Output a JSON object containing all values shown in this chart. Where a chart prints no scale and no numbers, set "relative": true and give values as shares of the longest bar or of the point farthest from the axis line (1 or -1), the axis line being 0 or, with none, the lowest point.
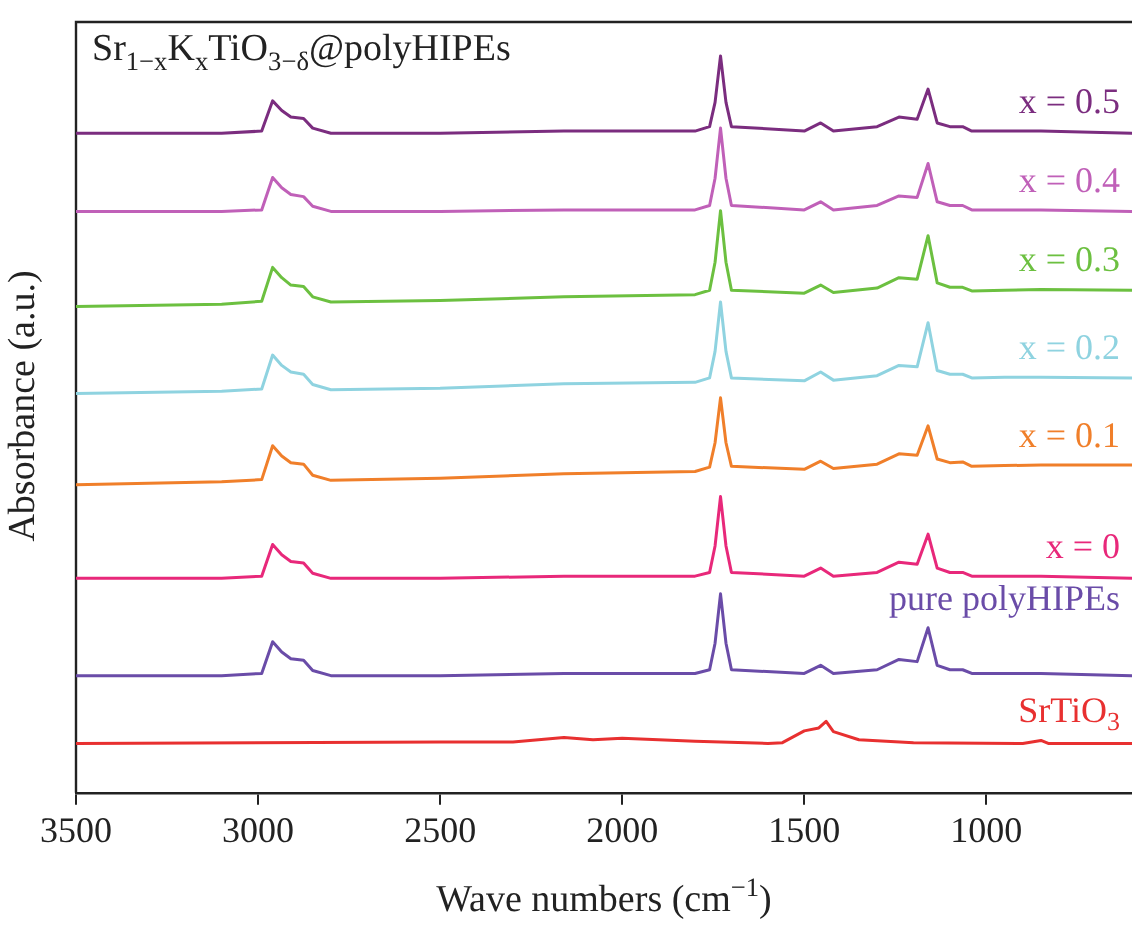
{
  "chart_data": {
    "type": "line",
    "relative": true,
    "title": "Sr$_{1−x}$K$_{x}$TiO$_{3−δ}$@polyHIPEs",
    "xlabel": "Wave numbers (cm$^{−1}$)",
    "ylabel": "Absorbance (a.u.)",
    "xlim": [
      3500,
      600
    ],
    "xticks": [
      3500,
      3000,
      2500,
      2000,
      1500,
      1000
    ],
    "legend": false,
    "grid": false,
    "marker": "none",
    "x": [
      3500,
      3100,
      2990,
      2960,
      2935,
      2910,
      2875,
      2850,
      2800,
      2500,
      2160,
      1800,
      1760,
      1745,
      1730,
      1715,
      1700,
      1500,
      1455,
      1420,
      1300,
      1240,
      1190,
      1160,
      1135,
      1100,
      1065,
      1040,
      950,
      850,
      600
    ],
    "series": [
      {
        "name": "x = 0.5",
        "color": "#7b2d7f",
        "values": [
          0.895,
          0.895,
          0.898,
          0.939,
          0.926,
          0.917,
          0.915,
          0.902,
          0.895,
          0.895,
          0.898,
          0.898,
          0.904,
          0.937,
          1,
          0.937,
          0.904,
          0.898,
          0.909,
          0.898,
          0.904,
          0.917,
          0.914,
          0.955,
          0.909,
          0.904,
          0.904,
          0.898,
          0.898,
          0.898,
          0.895
        ]
      },
      {
        "name": "x = 0.4",
        "color": "#c060b8",
        "values": [
          0.789,
          0.789,
          0.791,
          0.835,
          0.821,
          0.812,
          0.809,
          0.796,
          0.789,
          0.789,
          0.791,
          0.791,
          0.797,
          0.834,
          0.902,
          0.834,
          0.797,
          0.791,
          0.802,
          0.791,
          0.797,
          0.81,
          0.808,
          0.854,
          0.802,
          0.797,
          0.797,
          0.791,
          0.791,
          0.791,
          0.789
        ]
      },
      {
        "name": "x = 0.3",
        "color": "#6cc040",
        "values": [
          0.66,
          0.663,
          0.667,
          0.713,
          0.699,
          0.689,
          0.687,
          0.673,
          0.666,
          0.668,
          0.673,
          0.676,
          0.682,
          0.72,
          0.79,
          0.72,
          0.682,
          0.678,
          0.689,
          0.679,
          0.685,
          0.699,
          0.697,
          0.756,
          0.692,
          0.686,
          0.686,
          0.681,
          0.682,
          0.683,
          0.682
        ]
      },
      {
        "name": "x = 0.2",
        "color": "#8fd3e0",
        "values": [
          0.542,
          0.545,
          0.548,
          0.594,
          0.58,
          0.571,
          0.568,
          0.554,
          0.547,
          0.549,
          0.555,
          0.557,
          0.563,
          0.599,
          0.666,
          0.599,
          0.563,
          0.559,
          0.571,
          0.56,
          0.566,
          0.58,
          0.578,
          0.638,
          0.573,
          0.568,
          0.568,
          0.563,
          0.564,
          0.564,
          0.563
        ]
      },
      {
        "name": "x = 0.1",
        "color": "#f07f2a",
        "values": [
          0.418,
          0.422,
          0.425,
          0.471,
          0.457,
          0.448,
          0.446,
          0.431,
          0.424,
          0.427,
          0.433,
          0.436,
          0.442,
          0.475,
          0.536,
          0.475,
          0.443,
          0.439,
          0.45,
          0.44,
          0.446,
          0.46,
          0.458,
          0.498,
          0.453,
          0.448,
          0.449,
          0.443,
          0.444,
          0.445,
          0.445
        ]
      },
      {
        "name": "x = 0",
        "color": "#e8287a",
        "values": [
          0.291,
          0.291,
          0.294,
          0.337,
          0.323,
          0.314,
          0.312,
          0.298,
          0.291,
          0.291,
          0.294,
          0.294,
          0.299,
          0.335,
          0.402,
          0.335,
          0.299,
          0.294,
          0.305,
          0.294,
          0.299,
          0.313,
          0.31,
          0.351,
          0.305,
          0.299,
          0.299,
          0.294,
          0.294,
          0.294,
          0.291
        ]
      },
      {
        "name": "pure polyHIPEs",
        "color": "#6a4ca8",
        "values": [
          0.159,
          0.159,
          0.162,
          0.205,
          0.191,
          0.182,
          0.18,
          0.166,
          0.159,
          0.159,
          0.162,
          0.162,
          0.167,
          0.203,
          0.27,
          0.203,
          0.167,
          0.162,
          0.173,
          0.162,
          0.167,
          0.181,
          0.178,
          0.224,
          0.173,
          0.167,
          0.167,
          0.162,
          0.162,
          0.162,
          0.159
        ]
      },
      {
        "name": "SrTiO$_{3}$",
        "color": "#e83030",
        "x": [
          3500,
          2500,
          2300,
          2160,
          2080,
          2000,
          1950,
          1800,
          1600,
          1560,
          1500,
          1460,
          1440,
          1420,
          1350,
          1200,
          900,
          850,
          830,
          600
        ],
        "values": [
          0.067,
          0.069,
          0.069,
          0.075,
          0.072,
          0.074,
          0.073,
          0.07,
          0.067,
          0.068,
          0.084,
          0.088,
          0.097,
          0.083,
          0.072,
          0.068,
          0.067,
          0.071,
          0.067,
          0.067
        ]
      }
    ]
  }
}
